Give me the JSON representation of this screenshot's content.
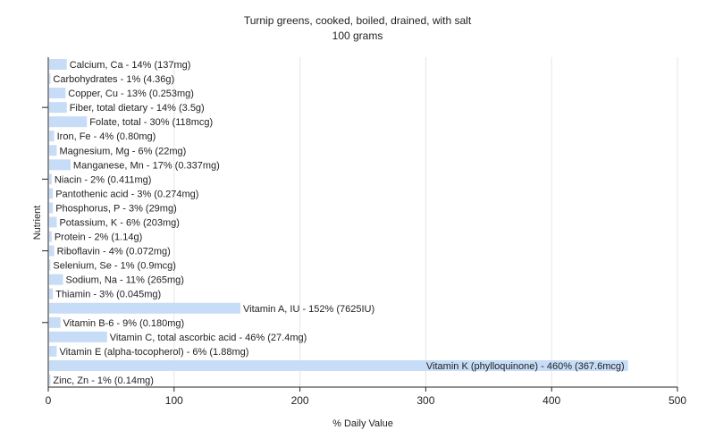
{
  "chart_data": {
    "type": "bar",
    "orientation": "horizontal",
    "title": "Turnip greens, cooked, boiled, drained, with salt",
    "subtitle": "100 grams",
    "xlabel": "% Daily Value",
    "ylabel": "Nutrient",
    "xlim": [
      0,
      500
    ],
    "xticks": [
      0,
      100,
      200,
      300,
      400,
      500
    ],
    "grid": true,
    "bar_color": "#c6dcf7",
    "categories": [
      "Calcium, Ca - 14% (137mg)",
      "Carbohydrates - 1% (4.36g)",
      "Copper, Cu - 13% (0.253mg)",
      "Fiber, total dietary - 14% (3.5g)",
      "Folate, total - 30% (118mcg)",
      "Iron, Fe - 4% (0.80mg)",
      "Magnesium, Mg - 6% (22mg)",
      "Manganese, Mn - 17% (0.337mg)",
      "Niacin - 2% (0.411mg)",
      "Pantothenic acid - 3% (0.274mg)",
      "Phosphorus, P - 3% (29mg)",
      "Potassium, K - 6% (203mg)",
      "Protein - 2% (1.14g)",
      "Riboflavin - 4% (0.072mg)",
      "Selenium, Se - 1% (0.9mcg)",
      "Sodium, Na - 11% (265mg)",
      "Thiamin - 3% (0.045mg)",
      "Vitamin A, IU - 152% (7625IU)",
      "Vitamin B-6 - 9% (0.180mg)",
      "Vitamin C, total ascorbic acid - 46% (27.4mg)",
      "Vitamin E (alpha-tocopherol) - 6% (1.88mg)",
      "Vitamin K (phylloquinone) - 460% (367.6mcg)",
      "Zinc, Zn - 1% (0.14mg)"
    ],
    "values": [
      14,
      1,
      13,
      14,
      30,
      4,
      6,
      17,
      2,
      3,
      3,
      6,
      2,
      4,
      1,
      11,
      3,
      152,
      9,
      46,
      6,
      460,
      1
    ]
  }
}
